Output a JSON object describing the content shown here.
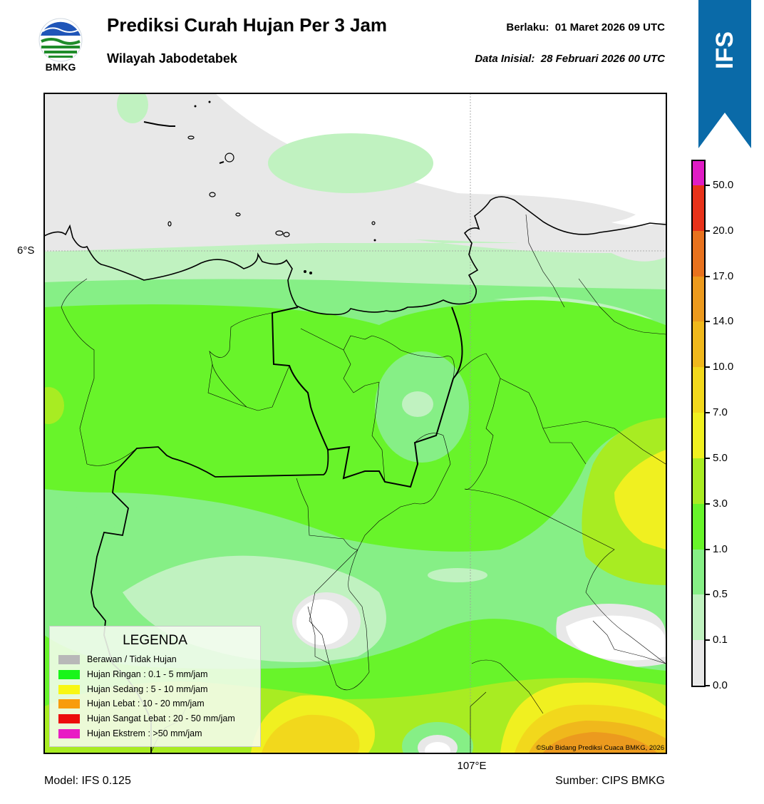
{
  "header": {
    "title": "Prediksi Curah Hujan Per 3 Jam",
    "subtitle": "Wilayah Jabodetabek",
    "valid_label": "Berlaku:",
    "valid_time": "01 Maret 2026 09 UTC",
    "init_label": "Data Inisial:",
    "init_time": "28 Februari 2026 00 UTC",
    "logo_text": "BMKG",
    "badge": "IFS"
  },
  "map": {
    "lat_label": "6°S",
    "lon_label": "107°E"
  },
  "legend": {
    "title": "LEGENDA",
    "items": [
      {
        "label": "Berawan / Tidak Hujan",
        "color": "#b8b8b8"
      },
      {
        "label": "Hujan Ringan : 0.1 - 5 mm/jam",
        "color": "#19f51a"
      },
      {
        "label": "Hujan Sedang : 5 - 10 mm/jam",
        "color": "#f8f713"
      },
      {
        "label": "Hujan Lebat : 10 - 20 mm/jam",
        "color": "#f89c0c"
      },
      {
        "label": "Hujan Sangat Lebat : 20 - 50 mm/jam",
        "color": "#ec0c0c"
      },
      {
        "label": "Hujan Ekstrem : >50 mm/jam",
        "color": "#e81cc4"
      }
    ]
  },
  "colorbar": {
    "levels": [
      "0.0",
      "0.1",
      "0.5",
      "1.0",
      "3.0",
      "5.0",
      "7.0",
      "10.0",
      "14.0",
      "17.0",
      "20.0",
      "50.0"
    ],
    "colors": [
      "#e8e8e8",
      "#c0f2c0",
      "#86ef86",
      "#68f42a",
      "#a8ec22",
      "#f0f020",
      "#f2d81c",
      "#f0b81c",
      "#ec9a1e",
      "#e8721e",
      "#e8321a",
      "#e01cc4"
    ]
  },
  "footer": {
    "model": "Model: IFS 0.125",
    "source": "Sumber: CIPS BMKG",
    "copyright": "©Sub Bidang Prediksi Cuaca BMKG, 2026"
  },
  "colors": {
    "ribbon": "#0a6aa8",
    "none": "#e8e8e8",
    "light": "#c0f2c0",
    "lightgreen": "#86ef86",
    "green": "#68f42a",
    "yellowgreen": "#a8ec22",
    "yellow": "#f0f020",
    "gold": "#f2d81c",
    "orange": "#f0b81c",
    "darkorange": "#ec9a1e"
  }
}
